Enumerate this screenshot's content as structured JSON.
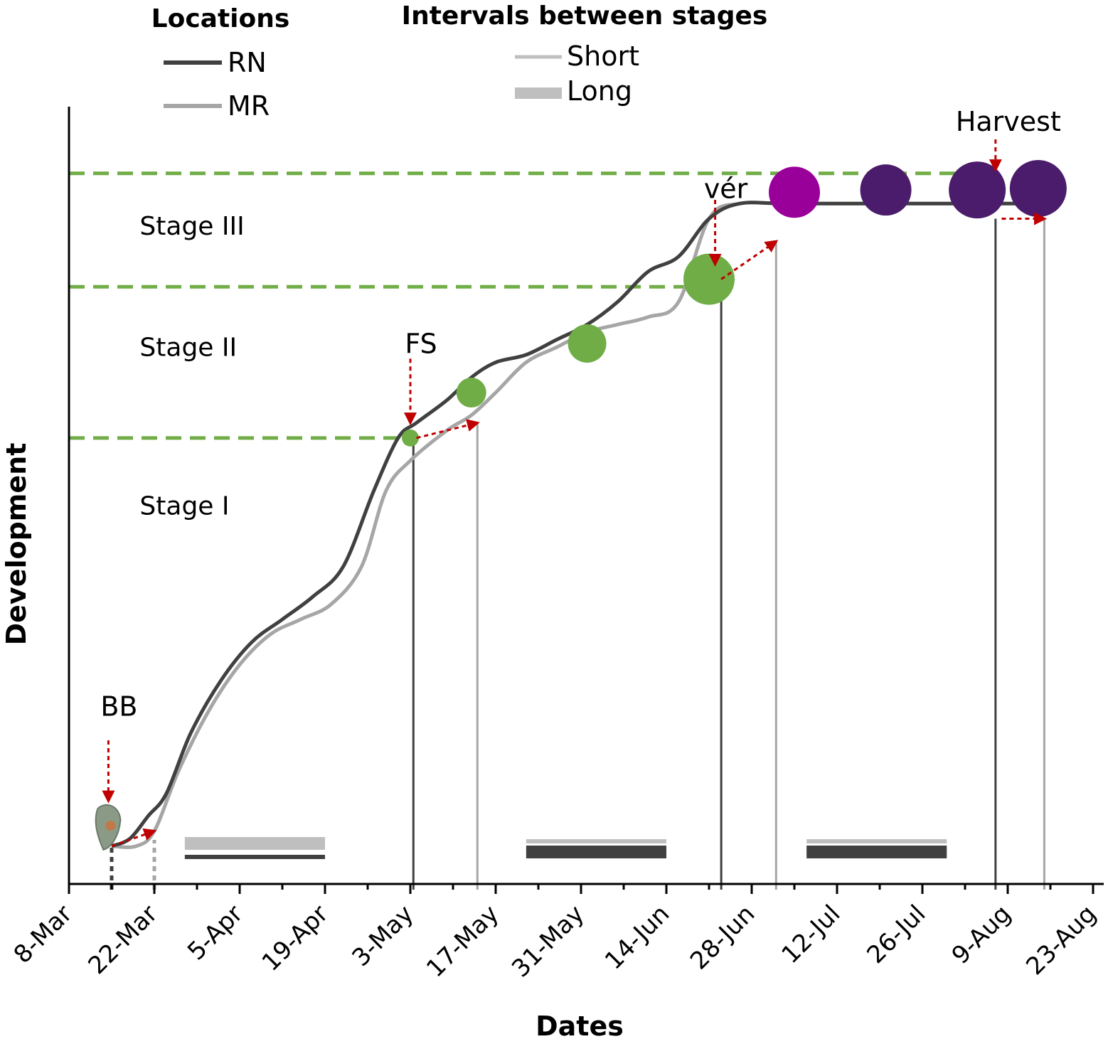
{
  "chart_data": {
    "type": "line",
    "title": "",
    "xlabel": "Dates",
    "ylabel": "Development",
    "x_ticks": [
      "8-Mar",
      "22-Mar",
      "5-Apr",
      "19-Apr",
      "3-May",
      "17-May",
      "31-May",
      "14-Jun",
      "28-Jun",
      "12-Jul",
      "26-Jul",
      "9-Aug",
      "23-Aug"
    ],
    "x_start_day": 0,
    "x_tick_step_days": 14,
    "x_range_days": [
      0,
      168
    ],
    "y_range": [
      0,
      100
    ],
    "legend_locations": {
      "title": "Locations",
      "items": [
        {
          "name": "RN",
          "color": "#404040"
        },
        {
          "name": "MR",
          "color": "#a6a6a6"
        }
      ]
    },
    "legend_intervals": {
      "title": "Intervals between stages",
      "items": [
        {
          "name": "Short",
          "color": "#bfbfbf",
          "style": "thin"
        },
        {
          "name": "Long",
          "color": "#bfbfbf",
          "style": "thick"
        }
      ]
    },
    "stage_labels": [
      {
        "text": "Stage I",
        "day": 6,
        "y": 50
      },
      {
        "text": "Stage II",
        "day": 6,
        "y": 71
      },
      {
        "text": "Stage III",
        "day": 6,
        "y": 87
      }
    ],
    "stage_boundaries": [
      {
        "y": 59,
        "day_end": 56
      },
      {
        "y": 79,
        "day_end": 104
      },
      {
        "y": 94,
        "day_end": 148
      }
    ],
    "series": [
      {
        "name": "RN",
        "color": "#404040",
        "points": [
          [
            7,
            5
          ],
          [
            10,
            6
          ],
          [
            13,
            9
          ],
          [
            16,
            12
          ],
          [
            20,
            20
          ],
          [
            25,
            27
          ],
          [
            30,
            32
          ],
          [
            35,
            35
          ],
          [
            40,
            38
          ],
          [
            45,
            42
          ],
          [
            50,
            52
          ],
          [
            54,
            59
          ],
          [
            57,
            61
          ],
          [
            62,
            64
          ],
          [
            66,
            67
          ],
          [
            70,
            69
          ],
          [
            75,
            70
          ],
          [
            80,
            72
          ],
          [
            85,
            74
          ],
          [
            90,
            77
          ],
          [
            95,
            81
          ],
          [
            100,
            83
          ],
          [
            105,
            88
          ],
          [
            110,
            90
          ],
          [
            118,
            90
          ],
          [
            135,
            90
          ],
          [
            160,
            90
          ]
        ]
      },
      {
        "name": "MR",
        "color": "#a6a6a6",
        "points": [
          [
            7,
            5
          ],
          [
            11,
            5
          ],
          [
            14,
            7
          ],
          [
            18,
            15
          ],
          [
            23,
            23
          ],
          [
            28,
            29
          ],
          [
            33,
            33
          ],
          [
            38,
            35
          ],
          [
            43,
            37
          ],
          [
            48,
            42
          ],
          [
            52,
            52
          ],
          [
            56,
            56
          ],
          [
            62,
            60
          ],
          [
            66,
            62
          ],
          [
            70,
            65
          ],
          [
            75,
            69
          ],
          [
            80,
            71
          ],
          [
            85,
            73
          ],
          [
            90,
            74
          ],
          [
            95,
            75
          ],
          [
            100,
            77
          ],
          [
            105,
            88
          ],
          [
            110,
            90
          ],
          [
            118,
            90
          ],
          [
            135,
            90
          ],
          [
            160,
            90
          ]
        ]
      }
    ],
    "vertical_markers": [
      {
        "day": 7,
        "series": "RN",
        "dashed": true
      },
      {
        "day": 14,
        "series": "MR",
        "dashed": true
      },
      {
        "day": 56.5,
        "series": "RN",
        "dashed": false
      },
      {
        "day": 67,
        "series": "MR",
        "dashed": false
      },
      {
        "day": 107,
        "series": "RN",
        "dashed": false
      },
      {
        "day": 116,
        "series": "MR",
        "dashed": false
      },
      {
        "day": 152,
        "series": "RN",
        "dashed": false
      },
      {
        "day": 160,
        "series": "MR",
        "dashed": false
      }
    ],
    "stage_dots": [
      {
        "day": 56,
        "y": 59,
        "size": "xs",
        "color": "#70ad47"
      },
      {
        "day": 66,
        "y": 65,
        "size": "s",
        "color": "#70ad47"
      },
      {
        "day": 85,
        "y": 71.5,
        "size": "m",
        "color": "#70ad47"
      },
      {
        "day": 105,
        "y": 80,
        "size": "l",
        "color": "#70ad47"
      },
      {
        "day": 119,
        "y": 91.5,
        "size": "l",
        "color": "#990099"
      },
      {
        "day": 134,
        "y": 91.8,
        "size": "l",
        "color": "#4b1c6b"
      },
      {
        "day": 149,
        "y": 91.8,
        "size": "xl",
        "color": "#4b1c6b"
      },
      {
        "day": 159,
        "y": 92,
        "size": "xl",
        "color": "#4b1c6b"
      }
    ],
    "events": [
      {
        "label": "BB",
        "day": 6,
        "y_text": 23,
        "arrow_from": 19,
        "arrow_to": 11
      },
      {
        "label": "FS",
        "day": 56,
        "y_text": 71,
        "arrow_from": 69.5,
        "arrow_to": 61
      },
      {
        "label": "vér",
        "day": 106,
        "y_text": 91.5,
        "arrow_from": 90.5,
        "arrow_to": 82
      },
      {
        "label": "Harvest",
        "day": 152,
        "y_text": 100,
        "arrow_from": 98.5,
        "arrow_to": 94.5
      }
    ],
    "shift_arrows": [
      {
        "from_day": 7,
        "from_y": 5,
        "to_day": 14,
        "to_y": 7
      },
      {
        "from_day": 57,
        "from_y": 59,
        "to_day": 67,
        "to_y": 61
      },
      {
        "from_day": 107,
        "from_y": 80,
        "to_day": 116,
        "to_y": 85
      },
      {
        "from_day": 153,
        "from_y": 88,
        "to_day": 160,
        "to_y": 88
      }
    ],
    "interval_bars": [
      {
        "day_start": 19,
        "day_end": 42,
        "top": "long",
        "top_series": "MR",
        "bottom": "short",
        "bottom_series": "RN"
      },
      {
        "day_start": 75,
        "day_end": 98,
        "top": "short",
        "top_series": "MR",
        "bottom": "long",
        "bottom_series": "RN"
      },
      {
        "day_start": 121,
        "day_end": 144,
        "top": "short",
        "top_series": "MR",
        "bottom": "long",
        "bottom_series": "RN"
      }
    ]
  }
}
